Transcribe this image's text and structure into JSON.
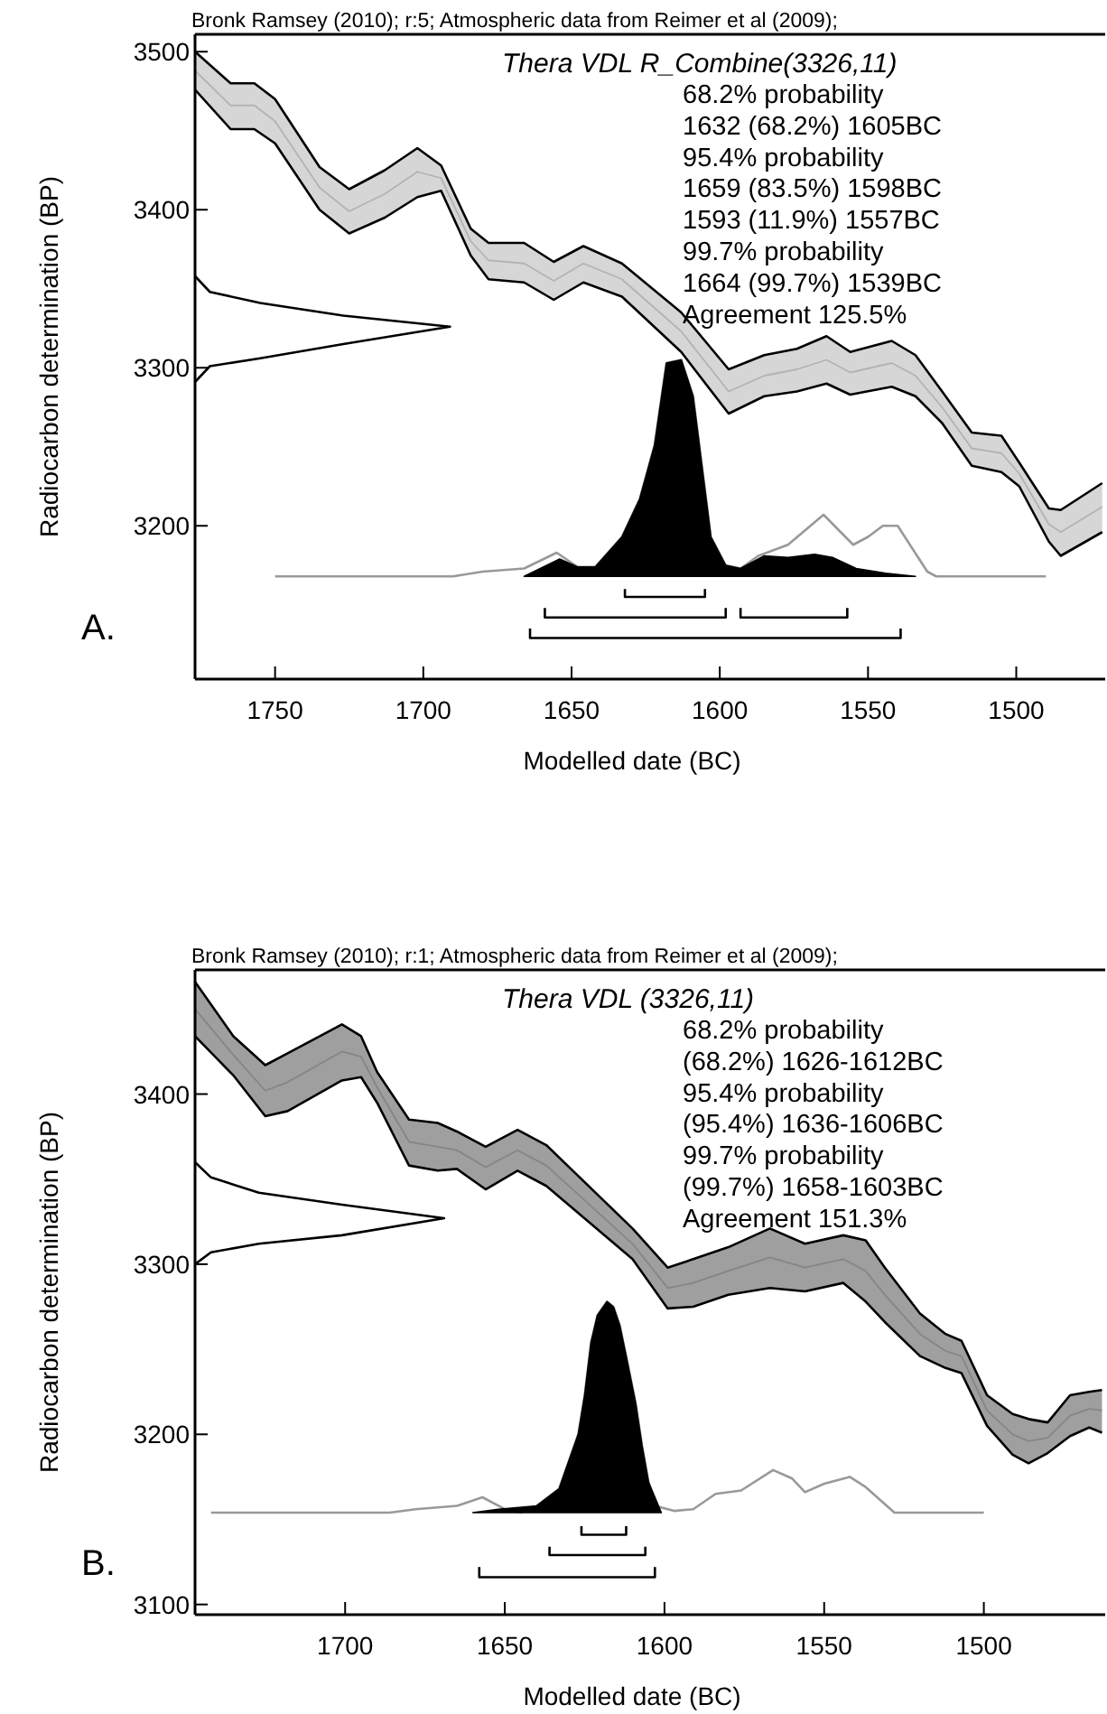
{
  "chart_data": [
    {
      "type": "line",
      "xlabel": "Modelled date (BC)",
      "ylabel": "Radiocarbon determination (BP)",
      "xlim": [
        1777,
        1470
      ],
      "ylim": [
        3103,
        3511
      ],
      "xticks": [
        1750,
        1700,
        1650,
        1600,
        1550,
        1500
      ],
      "yticks": [
        3200,
        3300,
        3400,
        3500
      ],
      "annotations": [
        "Bronk Ramsey (2010); r:5; Atmospheric data from Reimer et al (2009);",
        "Thera VDL R_Combine(3326,11)",
        "68.2% probability",
        "1632 (68.2%) 1605BC",
        "95.4% probability",
        "1659 (83.5%) 1598BC",
        "1593 (11.9%) 1557BC",
        "99.7% probability",
        "1664 (99.7%) 1539BC",
        "Agreement 125.5%",
        "A."
      ],
      "series": [
        {
          "color": "#b3b3b3",
          "x": [
            1777,
            1765,
            1757,
            1750,
            1735,
            1725,
            1713,
            1702,
            1694,
            1684,
            1678,
            1666,
            1656,
            1646,
            1633,
            1613,
            1597,
            1585,
            1574,
            1564,
            1556,
            1542,
            1534,
            1525,
            1515,
            1505,
            1499,
            1489,
            1485,
            1471
          ],
          "values": [
            3488,
            3466,
            3466,
            3456,
            3414,
            3399,
            3410,
            3424,
            3420,
            3380,
            3368,
            3366,
            3355,
            3366,
            3356,
            3323,
            3285,
            3295,
            3299,
            3305,
            3297,
            3303,
            3295,
            3275,
            3249,
            3246,
            3233,
            3201,
            3196,
            3212
          ],
          "upper": [
            3500,
            3480,
            3480,
            3470,
            3427,
            3413,
            3425,
            3439,
            3428,
            3388,
            3379,
            3379,
            3367,
            3377,
            3366,
            3335,
            3299,
            3308,
            3312,
            3320,
            3310,
            3317,
            3308,
            3285,
            3259,
            3257,
            3240,
            3211,
            3210,
            3227
          ],
          "lower": [
            3476,
            3451,
            3451,
            3442,
            3400,
            3385,
            3395,
            3408,
            3412,
            3371,
            3356,
            3354,
            3343,
            3354,
            3345,
            3310,
            3271,
            3282,
            3285,
            3290,
            3283,
            3288,
            3282,
            3265,
            3238,
            3234,
            3225,
            3190,
            3181,
            3196
          ]
        },
        {
          "color": "#000000",
          "x": [
            1777,
            1765,
            1757,
            1750,
            1735,
            1725,
            1713,
            1702,
            1694,
            1684,
            1678,
            1666,
            1656,
            1646,
            1633,
            1613,
            1597,
            1585,
            1574,
            1564,
            1556,
            1542,
            1534,
            1525,
            1515,
            1505,
            1499,
            1489,
            1485,
            1471
          ],
          "values": [
            3500,
            3480,
            3480,
            3470,
            3427,
            3413,
            3425,
            3439,
            3428,
            3388,
            3379,
            3379,
            3367,
            3377,
            3366,
            3335,
            3299,
            3308,
            3312,
            3320,
            3310,
            3317,
            3308,
            3285,
            3259,
            3257,
            3240,
            3211,
            3210,
            3227
          ]
        },
        {
          "color": "#000000",
          "x": [
            1777,
            1765,
            1757,
            1750,
            1735,
            1725,
            1713,
            1702,
            1694,
            1684,
            1678,
            1666,
            1656,
            1646,
            1633,
            1613,
            1597,
            1585,
            1574,
            1564,
            1556,
            1542,
            1534,
            1525,
            1515,
            1505,
            1499,
            1489,
            1485,
            1471
          ],
          "values": [
            3476,
            3451,
            3451,
            3442,
            3400,
            3385,
            3395,
            3408,
            3412,
            3371,
            3356,
            3354,
            3343,
            3354,
            3345,
            3310,
            3271,
            3282,
            3285,
            3290,
            3283,
            3288,
            3282,
            3265,
            3238,
            3234,
            3225,
            3190,
            3181,
            3196
          ]
        },
        {
          "color": "#000000",
          "x": [
            1777,
            1772,
            1755,
            1727,
            1691,
            1727,
            1755,
            1772,
            1777
          ],
          "values": [
            3358,
            3348,
            3341,
            3333,
            3326,
            3315,
            3306,
            3301,
            3291
          ]
        },
        {
          "color": "#999999",
          "x": [
            1750,
            1690,
            1680,
            1666,
            1655,
            1648,
            1642,
            1633,
            1627,
            1622,
            1618,
            1613,
            1609,
            1603,
            1598,
            1593,
            1587,
            1577,
            1565,
            1555,
            1550,
            1545,
            1540,
            1530,
            1527,
            1490
          ],
          "values": [
            3168,
            3168,
            3171,
            3173,
            3183,
            3174,
            3174,
            3193,
            3217,
            3251,
            3303,
            3305,
            3282,
            3193,
            3175,
            3173,
            3181,
            3188,
            3207,
            3188,
            3193,
            3200,
            3200,
            3171,
            3168,
            3168
          ]
        },
        {
          "type": "area",
          "color": "#000000",
          "x": [
            1666,
            1654,
            1648,
            1642,
            1633,
            1627,
            1622,
            1618,
            1613,
            1609,
            1603,
            1598,
            1593,
            1585,
            1577,
            1568,
            1562,
            1554,
            1544,
            1534
          ],
          "values": [
            3168,
            3179,
            3174,
            3174,
            3193,
            3217,
            3251,
            3303,
            3305,
            3282,
            3193,
            3175,
            3173,
            3181,
            3180,
            3182,
            3180,
            3173,
            3170,
            3168
          ]
        },
        {
          "color": "#000000",
          "x": [
            1632,
            1632,
            1605,
            1605
          ],
          "values": [
            3160,
            3155,
            3155,
            3160
          ]
        },
        {
          "color": "#000000",
          "x": [
            1659,
            1659,
            1598,
            1598
          ],
          "values": [
            3148,
            3142,
            3142,
            3148
          ]
        },
        {
          "color": "#000000",
          "x": [
            1593,
            1593,
            1557,
            1557
          ],
          "values": [
            3148,
            3142,
            3142,
            3148
          ]
        },
        {
          "color": "#000000",
          "x": [
            1664,
            1664,
            1539,
            1539
          ],
          "values": [
            3135,
            3129,
            3129,
            3135
          ]
        }
      ]
    },
    {
      "type": "line",
      "xlabel": "Modelled date (BC)",
      "ylabel": "Radiocarbon determination (BP)",
      "xlim": [
        1747,
        1462
      ],
      "ylim": [
        3094,
        3473
      ],
      "xticks": [
        1700,
        1650,
        1600,
        1550,
        1500
      ],
      "yticks": [
        3100,
        3200,
        3300,
        3400
      ],
      "annotations": [
        "Bronk Ramsey (2010); r:1; Atmospheric data from Reimer et al (2009);",
        "Thera VDL (3326,11)",
        "68.2% probability",
        "(68.2%) 1626-1612BC",
        "95.4% probability",
        "(95.4%) 1636-1606BC",
        "99.7% probability",
        "(99.7%) 1658-1603BC",
        "Agreement 151.3%",
        "B."
      ],
      "series": [
        {
          "color": "#858585",
          "x": [
            1747,
            1735,
            1725,
            1718,
            1701,
            1695,
            1690,
            1680,
            1671,
            1665,
            1656,
            1646,
            1637,
            1610,
            1599,
            1591,
            1580,
            1567,
            1556,
            1544,
            1537,
            1531,
            1520,
            1512,
            1507,
            1499,
            1491,
            1486,
            1480,
            1473,
            1467,
            1463
          ],
          "values": [
            3450,
            3423,
            3402,
            3407,
            3425,
            3422,
            3404,
            3372,
            3369,
            3367,
            3357,
            3367,
            3358,
            3312,
            3286,
            3289,
            3296,
            3304,
            3298,
            3303,
            3296,
            3282,
            3259,
            3249,
            3246,
            3214,
            3200,
            3196,
            3198,
            3211,
            3215,
            3214
          ],
          "upper": [
            3466,
            3434,
            3417,
            3424,
            3441,
            3434,
            3413,
            3385,
            3383,
            3378,
            3369,
            3379,
            3370,
            3321,
            3298,
            3303,
            3310,
            3321,
            3312,
            3317,
            3314,
            3298,
            3271,
            3259,
            3255,
            3223,
            3212,
            3209,
            3207,
            3223,
            3225,
            3226
          ],
          "lower": [
            3434,
            3411,
            3387,
            3390,
            3408,
            3410,
            3395,
            3358,
            3355,
            3356,
            3344,
            3355,
            3346,
            3303,
            3274,
            3275,
            3282,
            3286,
            3284,
            3289,
            3278,
            3266,
            3246,
            3239,
            3236,
            3205,
            3188,
            3183,
            3189,
            3199,
            3204,
            3201
          ]
        },
        {
          "color": "#000000",
          "x": [
            1747,
            1735,
            1725,
            1718,
            1701,
            1695,
            1690,
            1680,
            1671,
            1665,
            1656,
            1646,
            1637,
            1610,
            1599,
            1591,
            1580,
            1567,
            1556,
            1544,
            1537,
            1531,
            1520,
            1512,
            1507,
            1499,
            1491,
            1486,
            1480,
            1473,
            1467,
            1463
          ],
          "values": [
            3466,
            3434,
            3417,
            3424,
            3441,
            3434,
            3413,
            3385,
            3383,
            3378,
            3369,
            3379,
            3370,
            3321,
            3298,
            3303,
            3310,
            3321,
            3312,
            3317,
            3314,
            3298,
            3271,
            3259,
            3255,
            3223,
            3212,
            3209,
            3207,
            3223,
            3225,
            3226
          ]
        },
        {
          "color": "#000000",
          "x": [
            1747,
            1735,
            1725,
            1718,
            1701,
            1695,
            1690,
            1680,
            1671,
            1665,
            1656,
            1646,
            1637,
            1610,
            1599,
            1591,
            1580,
            1567,
            1556,
            1544,
            1537,
            1531,
            1520,
            1512,
            1507,
            1499,
            1491,
            1486,
            1480,
            1473,
            1467,
            1463
          ],
          "values": [
            3434,
            3411,
            3387,
            3390,
            3408,
            3410,
            3395,
            3358,
            3355,
            3356,
            3344,
            3355,
            3346,
            3303,
            3274,
            3275,
            3282,
            3286,
            3284,
            3289,
            3278,
            3266,
            3246,
            3239,
            3236,
            3205,
            3188,
            3183,
            3189,
            3199,
            3204,
            3201
          ]
        },
        {
          "color": "#000000",
          "x": [
            1747,
            1742,
            1727,
            1701,
            1669,
            1701,
            1727,
            1742,
            1747
          ],
          "values": [
            3360,
            3351,
            3342,
            3335,
            3327,
            3317,
            3312,
            3307,
            3300
          ]
        },
        {
          "color": "#999999",
          "x": [
            1742,
            1686,
            1678,
            1665,
            1657,
            1650,
            1645,
            1640,
            1633,
            1627,
            1625,
            1623,
            1621,
            1618,
            1616,
            1614,
            1612,
            1609,
            1607,
            1605,
            1603,
            1597,
            1591,
            1584,
            1576,
            1566,
            1560,
            1556,
            1550,
            1542,
            1537,
            1528,
            1500
          ],
          "values": [
            3154,
            3154,
            3156,
            3158,
            3163,
            3156,
            3154,
            3158,
            3168,
            3200,
            3223,
            3254,
            3270,
            3278,
            3275,
            3264,
            3246,
            3218,
            3193,
            3172,
            3158,
            3155,
            3156,
            3165,
            3167,
            3179,
            3174,
            3166,
            3171,
            3175,
            3169,
            3154,
            3154
          ]
        },
        {
          "type": "area",
          "color": "#000000",
          "x": [
            1660,
            1652,
            1640,
            1633,
            1627,
            1625,
            1623,
            1621,
            1618,
            1616,
            1614,
            1612,
            1609,
            1607,
            1605,
            1601
          ],
          "values": [
            3154,
            3156,
            3158,
            3168,
            3200,
            3223,
            3254,
            3270,
            3278,
            3275,
            3264,
            3246,
            3218,
            3193,
            3172,
            3154
          ]
        },
        {
          "color": "#000000",
          "x": [
            1626,
            1626,
            1612,
            1612
          ],
          "values": [
            3146,
            3141,
            3141,
            3146
          ]
        },
        {
          "color": "#000000",
          "x": [
            1636,
            1636,
            1606,
            1606
          ],
          "values": [
            3134,
            3129,
            3129,
            3134
          ]
        },
        {
          "color": "#000000",
          "x": [
            1658,
            1658,
            1603,
            1603
          ],
          "values": [
            3122,
            3116,
            3116,
            3122
          ]
        }
      ]
    }
  ]
}
